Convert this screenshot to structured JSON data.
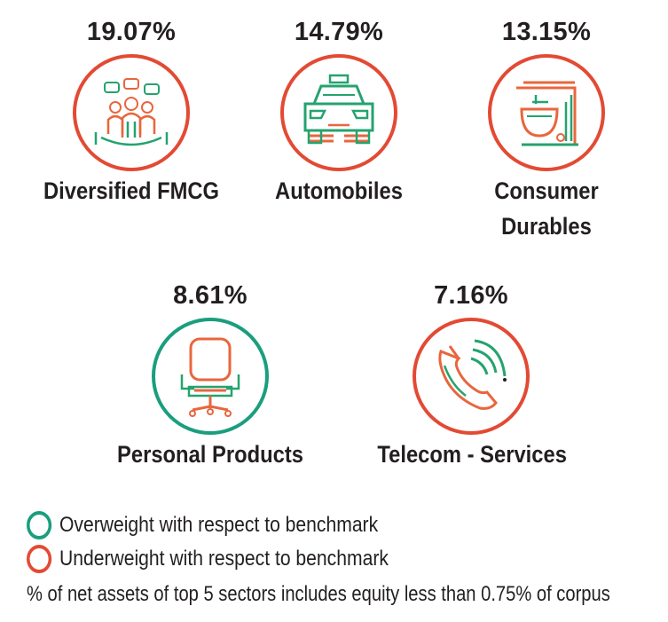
{
  "colors": {
    "overweight": "#1a9e7e",
    "underweight": "#e34a33",
    "icon_orange": "#e8663d",
    "icon_green": "#24a36f"
  },
  "sectors": [
    {
      "percent": "19.07%",
      "name": "Diversified FMCG",
      "weight": "underweight",
      "icon": "consumers-group-icon"
    },
    {
      "percent": "14.79%",
      "name": "Automobiles",
      "weight": "underweight",
      "icon": "car-icon"
    },
    {
      "percent": "13.15%",
      "name": "Consumer Durables",
      "weight": "underweight",
      "icon": "stand-mixer-icon"
    },
    {
      "percent": "8.61%",
      "name": "Personal Products",
      "weight": "overweight",
      "icon": "office-chair-icon"
    },
    {
      "percent": "7.16%",
      "name": "Telecom - Services",
      "weight": "underweight",
      "icon": "phone-call-icon"
    }
  ],
  "legend": {
    "overweight_label": "Overweight with respect to benchmark",
    "underweight_label": "Underweight with respect to benchmark"
  },
  "footnote": "% of net assets of top 5 sectors includes equity less than 0.75% of corpus"
}
